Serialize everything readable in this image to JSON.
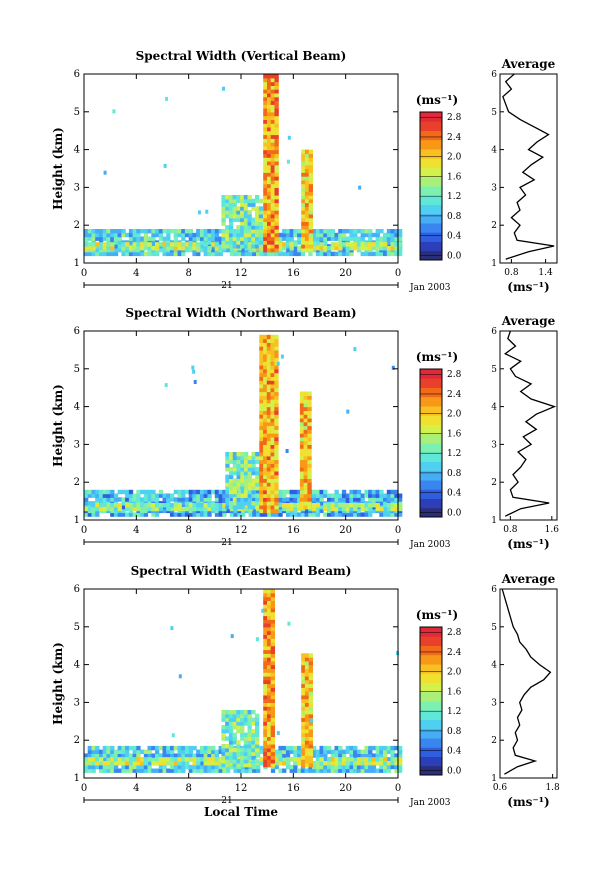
{
  "colors": {
    "colormap": [
      "#2b2f7a",
      "#2d3fb8",
      "#2f5fe0",
      "#3a86f0",
      "#46aef5",
      "#4fd0f0",
      "#5fe8d8",
      "#7cf0b0",
      "#a8f07a",
      "#d4f04a",
      "#f0e030",
      "#f8c020",
      "#f89818",
      "#f06a1a",
      "#e8402a",
      "#e02a3a"
    ],
    "line": "#000000",
    "background": "#ffffff"
  },
  "chart_data": [
    {
      "type": "heatmap",
      "title": "Spectral Width (Vertical Beam)",
      "xlabel": "",
      "ylabel": "Height (km)",
      "x_ticks": [
        "0",
        "4",
        "8",
        "12",
        "16",
        "20",
        "0"
      ],
      "y_ticks": [
        "1",
        "2",
        "3",
        "4",
        "5",
        "6"
      ],
      "xlim": [
        0,
        24
      ],
      "ylim": [
        1,
        6
      ],
      "date_ticks": [
        "21"
      ],
      "date_suffix": "Jan 2003",
      "colorbar": {
        "unit": "(ms⁻¹)",
        "range": [
          0,
          3.0
        ],
        "labels": [
          "0.0",
          "0.4",
          "0.8",
          "1.2",
          "1.6",
          "2.0",
          "2.4",
          "2.8"
        ]
      },
      "echo_cells": [
        {
          "t0": 0,
          "t1": 24,
          "h0": 1.2,
          "h1": 1.85,
          "level": 0.35
        },
        {
          "t0": 0,
          "t1": 24,
          "h0": 1.35,
          "h1": 1.55,
          "level": 0.55
        },
        {
          "t0": 10.5,
          "t1": 13.5,
          "h0": 1.4,
          "h1": 2.8,
          "level": 0.45
        },
        {
          "t0": 13.7,
          "t1": 14.6,
          "h0": 1.3,
          "h1": 5.9,
          "level": 0.95
        },
        {
          "t0": 16.6,
          "t1": 17.3,
          "h0": 1.3,
          "h1": 4.0,
          "level": 0.9
        }
      ],
      "average_profile": {
        "title": "Average",
        "xlabel": "(ms⁻¹)",
        "x_ticks": [
          "0.8",
          "1.4"
        ],
        "xlim": [
          0.6,
          1.6
        ],
        "heights": [
          1.1,
          1.3,
          1.45,
          1.6,
          1.8,
          2.0,
          2.2,
          2.4,
          2.6,
          2.8,
          3.0,
          3.2,
          3.4,
          3.6,
          3.8,
          4.0,
          4.2,
          4.4,
          4.6,
          4.8,
          5.0,
          5.2,
          5.4,
          5.6,
          5.8,
          6.0
        ],
        "values": [
          0.7,
          1.1,
          1.55,
          0.9,
          0.85,
          0.95,
          0.8,
          0.95,
          0.9,
          1.05,
          0.95,
          1.2,
          1.0,
          1.15,
          1.35,
          1.1,
          1.25,
          1.45,
          1.2,
          0.95,
          0.75,
          0.7,
          0.65,
          0.8,
          0.7,
          0.85
        ]
      }
    },
    {
      "type": "heatmap",
      "title": "Spectral Width (Northward Beam)",
      "xlabel": "",
      "ylabel": "Height (km)",
      "x_ticks": [
        "0",
        "4",
        "8",
        "12",
        "16",
        "20",
        "0"
      ],
      "y_ticks": [
        "1",
        "2",
        "3",
        "4",
        "5",
        "6"
      ],
      "xlim": [
        0,
        24
      ],
      "ylim": [
        1,
        6
      ],
      "date_ticks": [
        "21"
      ],
      "date_suffix": "Jan 2003",
      "colorbar": {
        "unit": "(ms⁻¹)",
        "range": [
          0,
          3.0
        ],
        "labels": [
          "0.0",
          "0.4",
          "0.8",
          "1.2",
          "1.6",
          "2.0",
          "2.4",
          "2.8"
        ]
      },
      "echo_cells": [
        {
          "t0": 0,
          "t1": 24,
          "h0": 1.1,
          "h1": 1.8,
          "level": 0.3
        },
        {
          "t0": 0,
          "t1": 24,
          "h0": 1.25,
          "h1": 1.45,
          "level": 0.5
        },
        {
          "t0": 10.8,
          "t1": 13.2,
          "h0": 1.3,
          "h1": 2.8,
          "level": 0.45
        },
        {
          "t0": 13.4,
          "t1": 14.6,
          "h0": 1.2,
          "h1": 5.8,
          "level": 0.92
        },
        {
          "t0": 16.5,
          "t1": 17.1,
          "h0": 1.3,
          "h1": 4.4,
          "level": 0.9
        }
      ],
      "average_profile": {
        "title": "Average",
        "xlabel": "(ms⁻¹)",
        "x_ticks": [
          "0.8",
          "1.6"
        ],
        "xlim": [
          0.6,
          1.7
        ],
        "heights": [
          1.1,
          1.3,
          1.45,
          1.6,
          1.8,
          2.0,
          2.2,
          2.4,
          2.6,
          2.8,
          3.0,
          3.2,
          3.4,
          3.6,
          3.8,
          4.0,
          4.2,
          4.4,
          4.6,
          4.8,
          5.0,
          5.2,
          5.4,
          5.6,
          5.8,
          6.0
        ],
        "values": [
          0.7,
          1.0,
          1.55,
          0.85,
          0.8,
          0.95,
          0.85,
          1.0,
          1.1,
          0.95,
          1.2,
          1.05,
          1.3,
          1.1,
          1.3,
          1.65,
          1.2,
          1.0,
          1.2,
          0.9,
          0.8,
          1.0,
          0.7,
          0.9,
          0.75,
          0.8
        ]
      }
    },
    {
      "type": "heatmap",
      "title": "Spectral Width (Eastward Beam)",
      "xlabel": "Local Time",
      "ylabel": "Height (km)",
      "x_ticks": [
        "0",
        "4",
        "8",
        "12",
        "16",
        "20",
        "0"
      ],
      "y_ticks": [
        "1",
        "2",
        "3",
        "4",
        "5",
        "6"
      ],
      "xlim": [
        0,
        24
      ],
      "ylim": [
        1,
        6
      ],
      "date_ticks": [
        "21"
      ],
      "date_suffix": "Jan 2003",
      "colorbar": {
        "unit": "(ms⁻¹)",
        "range": [
          0,
          3.0
        ],
        "labels": [
          "0.0",
          "0.4",
          "0.8",
          "1.2",
          "1.6",
          "2.0",
          "2.4",
          "2.8"
        ]
      },
      "echo_cells": [
        {
          "t0": 0,
          "t1": 24,
          "h0": 1.15,
          "h1": 1.85,
          "level": 0.35
        },
        {
          "t0": 0,
          "t1": 24,
          "h0": 1.35,
          "h1": 1.55,
          "level": 0.55
        },
        {
          "t0": 10.5,
          "t1": 13.2,
          "h0": 1.3,
          "h1": 2.8,
          "level": 0.45
        },
        {
          "t0": 13.7,
          "t1": 14.5,
          "h0": 1.3,
          "h1": 5.9,
          "level": 0.95
        },
        {
          "t0": 16.6,
          "t1": 17.3,
          "h0": 1.3,
          "h1": 4.3,
          "level": 0.9
        }
      ],
      "average_profile": {
        "title": "Average",
        "xlabel": "(ms⁻¹)",
        "x_ticks": [
          "0.6",
          "1.8"
        ],
        "xlim": [
          0.6,
          1.9
        ],
        "heights": [
          1.1,
          1.3,
          1.45,
          1.6,
          1.8,
          2.0,
          2.2,
          2.4,
          2.6,
          2.8,
          3.0,
          3.2,
          3.4,
          3.6,
          3.8,
          4.0,
          4.2,
          4.4,
          4.6,
          4.8,
          5.0,
          5.2,
          5.4,
          5.6,
          5.8,
          6.0
        ],
        "values": [
          0.7,
          1.0,
          1.4,
          0.95,
          0.9,
          1.0,
          0.95,
          1.05,
          1.0,
          1.1,
          1.05,
          1.15,
          1.3,
          1.6,
          1.75,
          1.5,
          1.3,
          1.2,
          1.05,
          1.0,
          0.9,
          0.85,
          0.8,
          0.75,
          0.7,
          0.65
        ]
      }
    }
  ]
}
